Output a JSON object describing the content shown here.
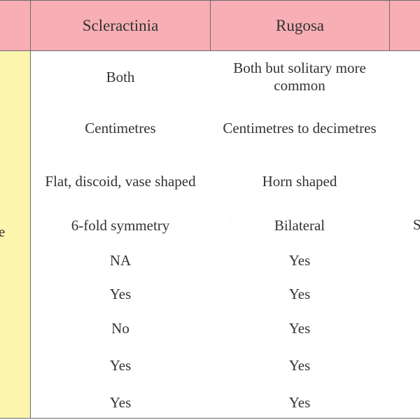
{
  "header": {
    "col_1": "Scleractinia",
    "col_2": "Rugosa"
  },
  "left_column": {
    "partial_text": "e"
  },
  "right_column": {
    "partial_text": "S"
  },
  "rows": [
    {
      "scleractinia": "Both",
      "rugosa": "Both but solitary more common"
    },
    {
      "scleractinia": "Centimetres",
      "rugosa": "Centimetres to decimetres"
    },
    {
      "scleractinia": "Flat, discoid, vase shaped",
      "rugosa": "Horn shaped"
    },
    {
      "scleractinia": "6-fold symmetry",
      "rugosa": "Bilateral"
    },
    {
      "scleractinia": "NA",
      "rugosa": "Yes"
    },
    {
      "scleractinia": "Yes",
      "rugosa": "Yes"
    },
    {
      "scleractinia": "No",
      "rugosa": "Yes"
    },
    {
      "scleractinia": "Yes",
      "rugosa": "Yes"
    },
    {
      "scleractinia": "Yes",
      "rugosa": "Yes"
    }
  ],
  "colors": {
    "header_bg": "#f7aeb5",
    "left_strip_bg": "#fbf5ad",
    "grid_line": "#6a6a6a",
    "text": "#333333"
  }
}
